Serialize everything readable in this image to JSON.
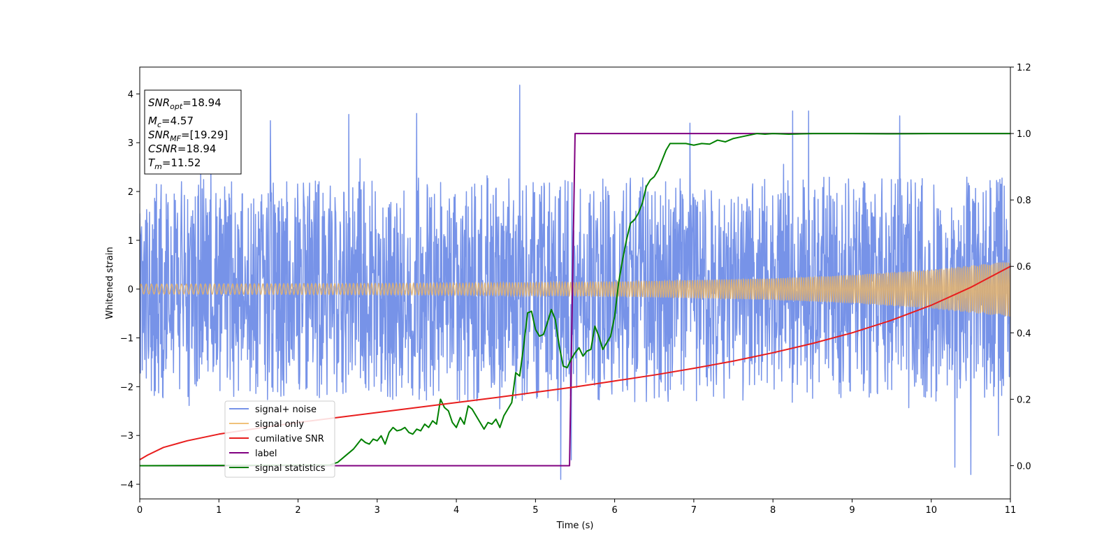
{
  "chart_data": {
    "type": "line",
    "title": "",
    "xlabel": "Time (s)",
    "ylabel": "Whitened strain",
    "xlim": [
      0,
      11
    ],
    "ylim": [
      -4.3,
      4.55
    ],
    "y2lim": [
      -0.1,
      1.2
    ],
    "x_ticks": [
      0,
      1,
      2,
      3,
      4,
      5,
      6,
      7,
      8,
      9,
      10,
      11
    ],
    "y_ticks": [
      -4,
      -3,
      -2,
      -1,
      0,
      1,
      2,
      3,
      4
    ],
    "y2_ticks": [
      "0.0",
      "0.2",
      "0.4",
      "0.6",
      "0.8",
      "1.0",
      "1.2"
    ],
    "grid": false,
    "legend_position": "lower-left",
    "info_box": {
      "snr_opt": {
        "name": "SNR",
        "sub": "opt",
        "value": "=18.94"
      },
      "mc": {
        "name": "M",
        "sub": "c",
        "value": "=4.57"
      },
      "snr_mf": {
        "name": "SNR",
        "sub": "MF",
        "value": "=[19.29]"
      },
      "csnr": {
        "name": "CSNR",
        "value": "=18.94"
      },
      "tm": {
        "name": "T",
        "sub": "m",
        "value": "=11.52"
      }
    },
    "series": [
      {
        "name": "signal+ noise",
        "axis": "left",
        "color": "#7793e8",
        "kind": "noise",
        "envelope_typical": [
          -1.9,
          2.1
        ],
        "spikes": [
          [
            0.77,
            2.4
          ],
          [
            1.65,
            3.45
          ],
          [
            2.64,
            3.58
          ],
          [
            3.5,
            3.6
          ],
          [
            4.8,
            4.18
          ],
          [
            5.32,
            -3.9
          ],
          [
            5.45,
            -3.5
          ],
          [
            6.95,
            3.4
          ],
          [
            8.25,
            3.65
          ],
          [
            8.45,
            3.65
          ],
          [
            9.6,
            3.55
          ],
          [
            10.3,
            -3.65
          ],
          [
            10.5,
            -3.8
          ],
          [
            10.85,
            -3.0
          ]
        ]
      },
      {
        "name": "signal only",
        "axis": "left",
        "color": "#f0c27a",
        "kind": "chirp",
        "amplitude": [
          [
            0,
            0.1
          ],
          [
            4,
            0.12
          ],
          [
            6,
            0.15
          ],
          [
            8,
            0.22
          ],
          [
            9,
            0.29
          ],
          [
            10,
            0.4
          ],
          [
            11,
            0.57
          ]
        ]
      },
      {
        "name": "cumilative SNR",
        "axis": "right",
        "color": "#e81d1d",
        "x": [
          0,
          0.1,
          0.3,
          0.6,
          1,
          1.5,
          2,
          2.5,
          3,
          3.5,
          4,
          4.5,
          5,
          5.5,
          6,
          6.5,
          7,
          7.5,
          8,
          8.5,
          9,
          9.5,
          10,
          10.5,
          11
        ],
        "y": [
          0.018,
          0.032,
          0.055,
          0.075,
          0.095,
          0.113,
          0.13,
          0.145,
          0.16,
          0.175,
          0.19,
          0.205,
          0.221,
          0.237,
          0.255,
          0.273,
          0.293,
          0.315,
          0.34,
          0.368,
          0.4,
          0.438,
          0.483,
          0.537,
          0.6
        ]
      },
      {
        "name": "label",
        "axis": "right",
        "color": "#800080",
        "x": [
          0,
          5.43,
          5.5,
          11
        ],
        "y": [
          0,
          0,
          1,
          1
        ]
      },
      {
        "name": "signal statistics",
        "axis": "right",
        "color": "#008000",
        "x": [
          0,
          2.4,
          2.5,
          2.6,
          2.7,
          2.8,
          2.85,
          2.9,
          2.95,
          3.0,
          3.05,
          3.1,
          3.15,
          3.2,
          3.25,
          3.3,
          3.35,
          3.4,
          3.45,
          3.5,
          3.55,
          3.6,
          3.65,
          3.7,
          3.75,
          3.8,
          3.85,
          3.9,
          3.95,
          4.0,
          4.05,
          4.1,
          4.15,
          4.2,
          4.25,
          4.3,
          4.35,
          4.4,
          4.45,
          4.5,
          4.55,
          4.6,
          4.65,
          4.7,
          4.75,
          4.8,
          4.85,
          4.9,
          4.95,
          5.0,
          5.05,
          5.1,
          5.15,
          5.2,
          5.25,
          5.3,
          5.35,
          5.4,
          5.45,
          5.5,
          5.55,
          5.6,
          5.65,
          5.7,
          5.75,
          5.8,
          5.85,
          5.9,
          5.95,
          6.0,
          6.05,
          6.1,
          6.15,
          6.2,
          6.25,
          6.3,
          6.35,
          6.4,
          6.45,
          6.5,
          6.55,
          6.6,
          6.65,
          6.7,
          6.8,
          6.9,
          7.0,
          7.1,
          7.2,
          7.3,
          7.4,
          7.5,
          7.6,
          7.7,
          7.8,
          7.9,
          8.0,
          8.2,
          8.5,
          9.0,
          9.5,
          10.0,
          10.5,
          11.0
        ],
        "y": [
          0,
          0.002,
          0.01,
          0.03,
          0.05,
          0.08,
          0.07,
          0.065,
          0.08,
          0.075,
          0.09,
          0.065,
          0.1,
          0.115,
          0.105,
          0.108,
          0.115,
          0.1,
          0.095,
          0.11,
          0.105,
          0.125,
          0.115,
          0.135,
          0.125,
          0.2,
          0.175,
          0.165,
          0.13,
          0.115,
          0.145,
          0.125,
          0.18,
          0.17,
          0.15,
          0.13,
          0.11,
          0.13,
          0.125,
          0.14,
          0.115,
          0.15,
          0.17,
          0.19,
          0.28,
          0.27,
          0.36,
          0.46,
          0.465,
          0.41,
          0.39,
          0.395,
          0.43,
          0.47,
          0.44,
          0.36,
          0.3,
          0.295,
          0.32,
          0.34,
          0.355,
          0.33,
          0.345,
          0.35,
          0.42,
          0.39,
          0.35,
          0.37,
          0.39,
          0.45,
          0.55,
          0.62,
          0.68,
          0.73,
          0.74,
          0.76,
          0.79,
          0.84,
          0.86,
          0.87,
          0.89,
          0.92,
          0.95,
          0.97,
          0.97,
          0.97,
          0.965,
          0.97,
          0.968,
          0.98,
          0.975,
          0.985,
          0.99,
          0.995,
          1.0,
          0.998,
          1.0,
          0.998,
          1.0,
          1.0,
          0.999,
          1.0,
          1.0,
          1.0
        ]
      }
    ]
  }
}
